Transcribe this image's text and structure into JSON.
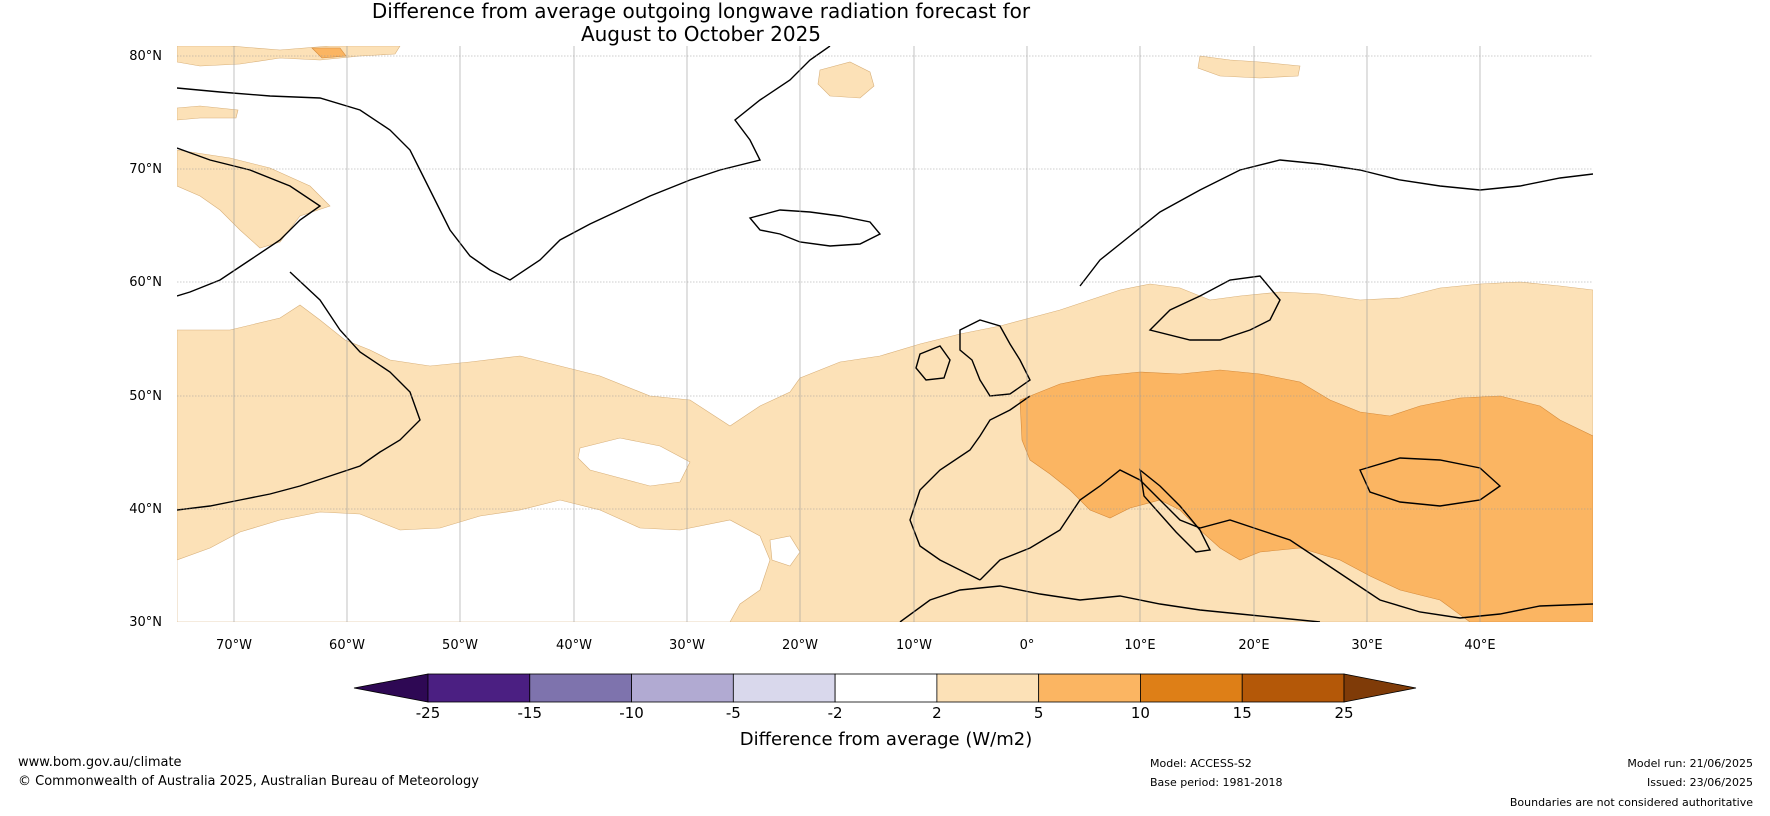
{
  "title": {
    "line1": "Difference from average outgoing longwave radiation forecast for",
    "line2": "August to October 2025"
  },
  "map": {
    "latitude_labels": [
      "80°N",
      "70°N",
      "60°N",
      "50°N",
      "40°N",
      "30°N"
    ],
    "longitude_labels": [
      "70°W",
      "60°W",
      "50°W",
      "40°W",
      "30°W",
      "20°W",
      "10°W",
      "0°",
      "10°E",
      "20°E",
      "30°E",
      "40°E"
    ],
    "extent": {
      "lon_min": -75,
      "lon_max": 50,
      "lat_min": 30,
      "lat_max": 81
    }
  },
  "colorbar": {
    "label": "Difference from average (W/m2)",
    "ticks": [
      "-25",
      "-15",
      "-10",
      "-5",
      "-2",
      "2",
      "5",
      "10",
      "15",
      "25"
    ],
    "colors": [
      "#4b1f82",
      "#7e73ad",
      "#b1aad2",
      "#d9d8ec",
      "#ffffff",
      "#fce1b7",
      "#fbb562",
      "#de7f17",
      "#b45808"
    ],
    "under_color": "#2e0854",
    "over_color": "#7f3b08"
  },
  "footer": {
    "website": "www.bom.gov.au/climate",
    "copyright": "© Commonwealth of Australia 2025, Australian Bureau of Meteorology",
    "model": "Model: ACCESS-S2",
    "base_period": "Base period: 1981-2018",
    "model_run": "Model run: 21/06/2025",
    "issued": "Issued: 23/06/2025",
    "disclaimer": "Boundaries are not considered authoritative"
  }
}
